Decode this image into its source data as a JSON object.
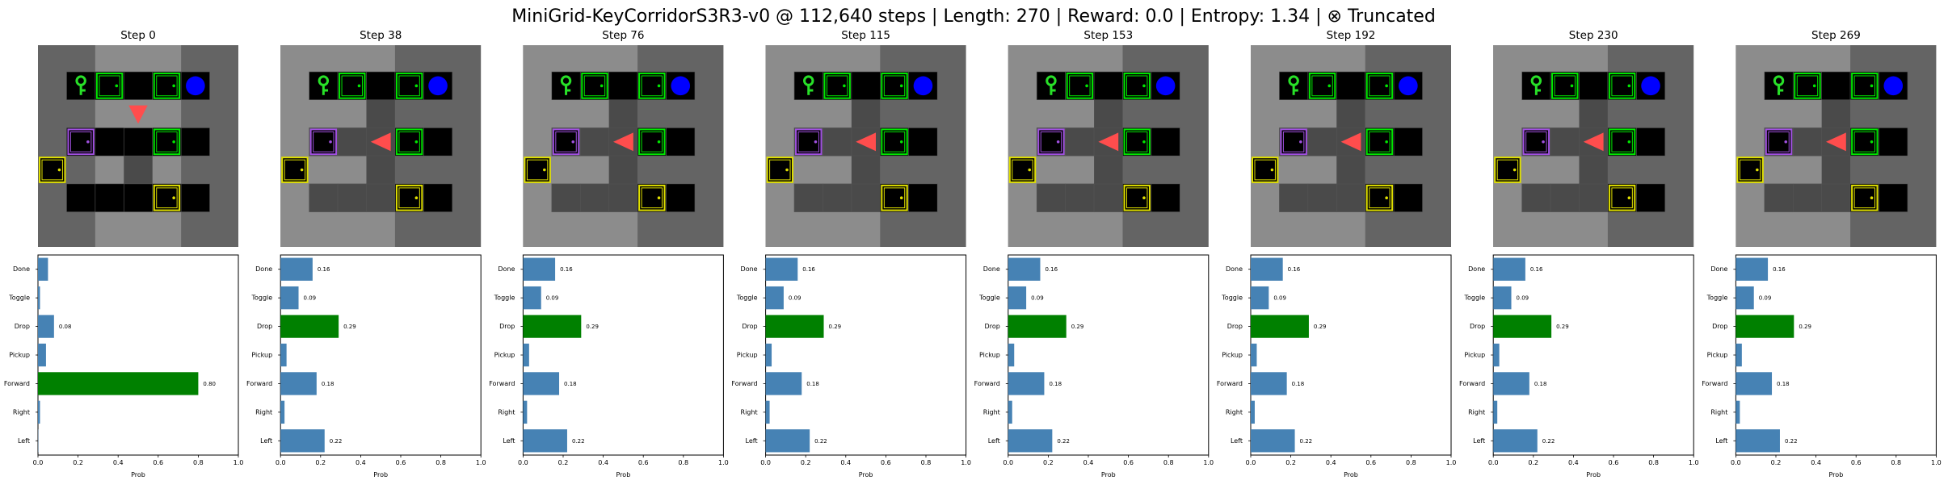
{
  "title": "MiniGrid-KeyCorridorS3R3-v0 @ 112,640 steps | Length: 270 | Reward: 0.0 | Entropy: 1.34 | ⊗ Truncated",
  "colors": {
    "wall": "#646464",
    "floor": "#000000",
    "cell_line": "#646464",
    "visible_overlay": "#ffffff",
    "agent": "#ff4d4d",
    "key": "#28e028",
    "ball": "#0000ff",
    "door_green": "#00e600",
    "door_yellow": "#e0e000",
    "door_purple": "#a050e0",
    "bar_default": "#4682b4",
    "bar_selected": "#008000"
  },
  "grid_legend": {
    "objects": [
      "key-icon",
      "ball-icon",
      "door",
      "agent-triangle"
    ]
  },
  "chart_data": [
    {
      "type": "bar",
      "orientation": "horizontal",
      "title": "Step 0",
      "categories": [
        "Left",
        "Right",
        "Forward",
        "Pickup",
        "Drop",
        "Toggle",
        "Done"
      ],
      "values": [
        0.0,
        0.01,
        0.8,
        0.04,
        0.08,
        0.01,
        0.05
      ],
      "value_labels": [
        "",
        "",
        "0.80",
        "",
        "0.08",
        "",
        ""
      ],
      "selected": "Forward",
      "xlabel": "Prob",
      "ylabel": "",
      "xlim": [
        0,
        1
      ],
      "xticks": [
        "0.0",
        "0.2",
        "0.4",
        "0.6",
        "0.8",
        "1.0"
      ],
      "grid": false
    },
    {
      "type": "bar",
      "orientation": "horizontal",
      "title": "Step 38",
      "categories": [
        "Left",
        "Right",
        "Forward",
        "Pickup",
        "Drop",
        "Toggle",
        "Done"
      ],
      "values": [
        0.22,
        0.02,
        0.18,
        0.03,
        0.29,
        0.09,
        0.16
      ],
      "value_labels": [
        "0.22",
        "",
        "0.18",
        "",
        "0.29",
        "0.09",
        "0.16"
      ],
      "selected": "Drop",
      "xlabel": "Prob",
      "ylabel": "",
      "xlim": [
        0,
        1
      ],
      "xticks": [
        "0.0",
        "0.2",
        "0.4",
        "0.6",
        "0.8",
        "1.0"
      ],
      "grid": false
    },
    {
      "type": "bar",
      "orientation": "horizontal",
      "title": "Step 76",
      "categories": [
        "Left",
        "Right",
        "Forward",
        "Pickup",
        "Drop",
        "Toggle",
        "Done"
      ],
      "values": [
        0.22,
        0.02,
        0.18,
        0.03,
        0.29,
        0.09,
        0.16
      ],
      "value_labels": [
        "0.22",
        "",
        "0.18",
        "",
        "0.29",
        "0.09",
        "0.16"
      ],
      "selected": "Drop",
      "xlabel": "Prob",
      "ylabel": "",
      "xlim": [
        0,
        1
      ],
      "xticks": [
        "0.0",
        "0.2",
        "0.4",
        "0.6",
        "0.8",
        "1.0"
      ],
      "grid": false
    },
    {
      "type": "bar",
      "orientation": "horizontal",
      "title": "Step 115",
      "categories": [
        "Left",
        "Right",
        "Forward",
        "Pickup",
        "Drop",
        "Toggle",
        "Done"
      ],
      "values": [
        0.22,
        0.02,
        0.18,
        0.03,
        0.29,
        0.09,
        0.16
      ],
      "value_labels": [
        "0.22",
        "",
        "0.18",
        "",
        "0.29",
        "0.09",
        "0.16"
      ],
      "selected": "Drop",
      "xlabel": "Prob",
      "ylabel": "",
      "xlim": [
        0,
        1
      ],
      "xticks": [
        "0.0",
        "0.2",
        "0.4",
        "0.6",
        "0.8",
        "1.0"
      ],
      "grid": false
    },
    {
      "type": "bar",
      "orientation": "horizontal",
      "title": "Step 153",
      "categories": [
        "Left",
        "Right",
        "Forward",
        "Pickup",
        "Drop",
        "Toggle",
        "Done"
      ],
      "values": [
        0.22,
        0.02,
        0.18,
        0.03,
        0.29,
        0.09,
        0.16
      ],
      "value_labels": [
        "0.22",
        "",
        "0.18",
        "",
        "0.29",
        "0.09",
        "0.16"
      ],
      "selected": "Drop",
      "xlabel": "Prob",
      "ylabel": "",
      "xlim": [
        0,
        1
      ],
      "xticks": [
        "0.0",
        "0.2",
        "0.4",
        "0.6",
        "0.8",
        "1.0"
      ],
      "grid": false
    },
    {
      "type": "bar",
      "orientation": "horizontal",
      "title": "Step 192",
      "categories": [
        "Left",
        "Right",
        "Forward",
        "Pickup",
        "Drop",
        "Toggle",
        "Done"
      ],
      "values": [
        0.22,
        0.02,
        0.18,
        0.03,
        0.29,
        0.09,
        0.16
      ],
      "value_labels": [
        "0.22",
        "",
        "0.18",
        "",
        "0.29",
        "0.09",
        "0.16"
      ],
      "selected": "Drop",
      "xlabel": "Prob",
      "ylabel": "",
      "xlim": [
        0,
        1
      ],
      "xticks": [
        "0.0",
        "0.2",
        "0.4",
        "0.6",
        "0.8",
        "1.0"
      ],
      "grid": false
    },
    {
      "type": "bar",
      "orientation": "horizontal",
      "title": "Step 230",
      "categories": [
        "Left",
        "Right",
        "Forward",
        "Pickup",
        "Drop",
        "Toggle",
        "Done"
      ],
      "values": [
        0.22,
        0.02,
        0.18,
        0.03,
        0.29,
        0.09,
        0.16
      ],
      "value_labels": [
        "0.22",
        "",
        "0.18",
        "",
        "0.29",
        "0.09",
        "0.16"
      ],
      "selected": "Drop",
      "xlabel": "Prob",
      "ylabel": "",
      "xlim": [
        0,
        1
      ],
      "xticks": [
        "0.0",
        "0.2",
        "0.4",
        "0.6",
        "0.8",
        "1.0"
      ],
      "grid": false
    },
    {
      "type": "bar",
      "orientation": "horizontal",
      "title": "Step 269",
      "categories": [
        "Left",
        "Right",
        "Forward",
        "Pickup",
        "Drop",
        "Toggle",
        "Done"
      ],
      "values": [
        0.22,
        0.02,
        0.18,
        0.03,
        0.29,
        0.09,
        0.16
      ],
      "value_labels": [
        "0.22",
        "",
        "0.18",
        "",
        "0.29",
        "0.09",
        "0.16"
      ],
      "selected": "Drop",
      "xlabel": "Prob",
      "ylabel": "",
      "xlim": [
        0,
        1
      ],
      "xticks": [
        "0.0",
        "0.2",
        "0.4",
        "0.6",
        "0.8",
        "1.0"
      ],
      "grid": false
    }
  ]
}
